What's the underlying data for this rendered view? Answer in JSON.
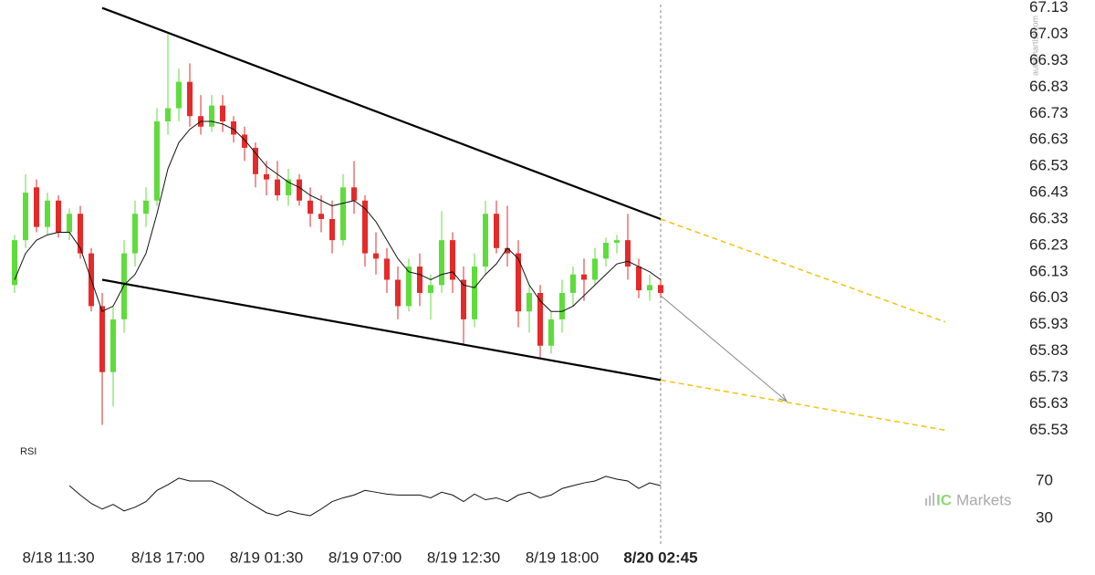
{
  "chart_data": [
    {
      "type": "candlestick",
      "categories": [
        null,
        null,
        null,
        null,
        "8/18 11:30",
        null,
        null,
        null,
        null,
        null,
        null,
        null,
        null,
        null,
        "8/18 17:00",
        null,
        null,
        null,
        null,
        null,
        null,
        null,
        null,
        "8/19 01:30",
        null,
        null,
        null,
        null,
        null,
        null,
        null,
        null,
        "8/19 07:00",
        null,
        null,
        null,
        null,
        null,
        null,
        null,
        null,
        "8/19 12:30",
        null,
        null,
        null,
        null,
        null,
        null,
        null,
        null,
        "8/19 18:00",
        null,
        null,
        null,
        null,
        null,
        null,
        null,
        null,
        "8/20 02:45"
      ],
      "open": [
        66.08,
        66.25,
        66.45,
        66.3,
        66.4,
        66.28,
        66.35,
        66.2,
        66.0,
        65.75,
        65.95,
        66.2,
        66.35,
        66.4,
        66.7,
        66.75,
        66.85,
        66.72,
        66.68,
        66.76,
        66.7,
        66.65,
        66.6,
        66.5,
        66.48,
        66.42,
        66.48,
        66.4,
        66.35,
        66.33,
        66.25,
        66.45,
        66.4,
        66.2,
        66.18,
        66.1,
        66.0,
        66.15,
        66.05,
        66.08,
        66.25,
        66.1,
        65.95,
        66.15,
        66.35,
        66.22,
        66.2,
        65.98,
        66.05,
        65.85,
        65.95,
        66.05,
        66.12,
        66.1,
        66.18,
        66.24,
        66.25,
        66.15,
        66.06,
        66.08
      ],
      "high": [
        66.27,
        66.5,
        66.48,
        66.43,
        66.42,
        66.37,
        66.38,
        66.22,
        66.05,
        66.0,
        66.25,
        66.4,
        66.45,
        66.75,
        67.03,
        66.9,
        66.92,
        66.8,
        66.8,
        66.8,
        66.72,
        66.68,
        66.62,
        66.55,
        66.55,
        66.52,
        66.5,
        66.45,
        66.42,
        66.4,
        66.5,
        66.55,
        66.42,
        66.28,
        66.22,
        66.15,
        66.18,
        66.2,
        66.12,
        66.36,
        66.28,
        66.15,
        66.2,
        66.4,
        66.4,
        66.38,
        66.25,
        66.08,
        66.08,
        65.98,
        66.1,
        66.15,
        66.18,
        66.22,
        66.26,
        66.27,
        66.35,
        66.18,
        66.12,
        66.1
      ],
      "low": [
        66.05,
        66.22,
        66.28,
        66.27,
        66.26,
        66.25,
        66.18,
        65.98,
        65.55,
        65.62,
        65.9,
        66.15,
        66.3,
        66.38,
        66.65,
        66.7,
        66.68,
        66.65,
        66.66,
        66.66,
        66.62,
        66.55,
        66.45,
        66.42,
        66.4,
        66.38,
        66.38,
        66.3,
        66.28,
        66.2,
        66.23,
        66.35,
        66.15,
        66.12,
        66.05,
        65.95,
        65.98,
        66.0,
        65.95,
        66.05,
        66.05,
        65.85,
        65.92,
        66.12,
        66.2,
        66.15,
        65.92,
        65.9,
        65.8,
        65.82,
        65.9,
        66.0,
        66.02,
        66.08,
        66.15,
        66.2,
        66.1,
        66.03,
        66.02,
        66.03
      ],
      "close": [
        66.25,
        66.43,
        66.3,
        66.4,
        66.28,
        66.35,
        66.2,
        66.0,
        65.75,
        65.95,
        66.2,
        66.35,
        66.4,
        66.7,
        66.75,
        66.85,
        66.72,
        66.68,
        66.76,
        66.7,
        66.65,
        66.6,
        66.5,
        66.48,
        66.42,
        66.48,
        66.4,
        66.35,
        66.33,
        66.25,
        66.45,
        66.4,
        66.2,
        66.18,
        66.1,
        66.0,
        66.15,
        66.05,
        66.08,
        66.25,
        66.1,
        65.95,
        66.15,
        66.35,
        66.22,
        66.2,
        65.98,
        66.05,
        65.85,
        65.95,
        66.05,
        66.12,
        66.1,
        66.18,
        66.24,
        66.25,
        66.15,
        66.06,
        66.08,
        66.05
      ],
      "up_color": "#5fdc3c",
      "down_color": "#e52a2a",
      "moving_average": {
        "color": "#111111",
        "values": [
          66.1,
          66.2,
          66.25,
          66.27,
          66.28,
          66.28,
          66.22,
          66.1,
          65.98,
          66.0,
          66.08,
          66.12,
          66.2,
          66.35,
          66.52,
          66.62,
          66.67,
          66.7,
          66.7,
          66.69,
          66.67,
          66.63,
          66.58,
          66.53,
          66.5,
          66.47,
          66.45,
          66.42,
          66.4,
          66.38,
          66.39,
          66.4,
          66.37,
          66.32,
          66.25,
          66.18,
          66.13,
          66.12,
          66.1,
          66.12,
          66.13,
          66.08,
          66.07,
          66.12,
          66.16,
          66.22,
          66.18,
          66.08,
          66.02,
          65.98,
          65.98,
          66.0,
          66.04,
          66.08,
          66.12,
          66.16,
          66.17,
          66.15,
          66.13,
          66.1
        ]
      },
      "trendlines": [
        {
          "color": "#000000",
          "x": [
            8,
            59
          ],
          "values": [
            67.13,
            66.33
          ]
        },
        {
          "color": "#000000",
          "x": [
            8,
            59
          ],
          "values": [
            66.1,
            65.72
          ]
        }
      ],
      "projections": [
        {
          "color": "#f5c518",
          "x": [
            59,
            85
          ],
          "values": [
            66.33,
            65.94
          ]
        },
        {
          "color": "#f5c518",
          "x": [
            59,
            85
          ],
          "values": [
            65.72,
            65.53
          ]
        }
      ],
      "arrow": {
        "color": "#888888",
        "x": [
          59,
          70.5
        ],
        "values": [
          66.04,
          65.64
        ]
      },
      "current": 59,
      "ylim": [
        65.5,
        67.16
      ],
      "yticks": [
        65.53,
        65.63,
        65.73,
        65.83,
        65.93,
        66.03,
        66.13,
        66.23,
        66.33,
        66.43,
        66.53,
        66.63,
        66.73,
        66.83,
        66.93,
        67.03,
        67.13
      ]
    },
    {
      "type": "line",
      "title": "RSI",
      "color": "#111111",
      "values": [
        null,
        null,
        null,
        null,
        null,
        65,
        55,
        46,
        40,
        45,
        38,
        42,
        48,
        60,
        66,
        73,
        70,
        70,
        70,
        65,
        58,
        50,
        43,
        36,
        33,
        38,
        35,
        33,
        40,
        48,
        52,
        55,
        60,
        58,
        56,
        55,
        55,
        55,
        52,
        58,
        55,
        48,
        56,
        50,
        52,
        48,
        55,
        58,
        52,
        55,
        62,
        65,
        68,
        70,
        75,
        72,
        70,
        62,
        68,
        65
      ],
      "ylim": [
        10,
        95
      ],
      "yticks": [
        30,
        70
      ]
    }
  ],
  "watermark": "autochartist.com",
  "logo": {
    "mark": "IC",
    "text": "Markets"
  }
}
